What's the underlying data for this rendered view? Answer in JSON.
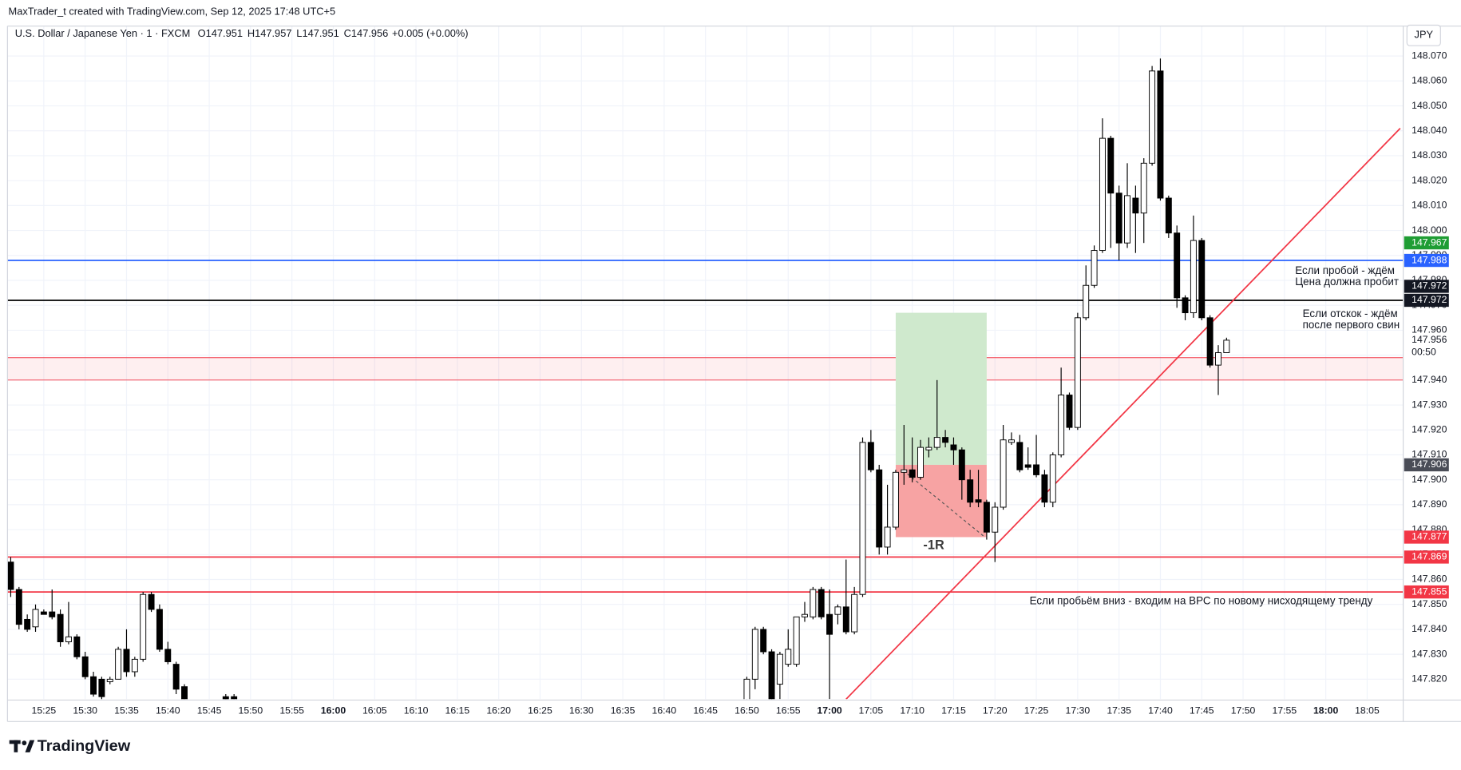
{
  "header": {
    "credit": "MaxTrader_t created with TradingView.com, Sep 12, 2025 17:48 UTC+5",
    "symbol": "U.S. Dollar / Japanese Yen · 1 · FXCM",
    "ohlc": [
      {
        "label": "O",
        "value": 147.951
      },
      {
        "label": "H",
        "value": 147.957
      },
      {
        "label": "L",
        "value": 147.951
      },
      {
        "label": "C",
        "value": 147.956
      }
    ],
    "change": "+0.005 (+0.00%)",
    "currency": "JPY"
  },
  "chart_data": {
    "type": "candlestick",
    "x": [
      "15:21",
      "15:22",
      "15:23",
      "15:24",
      "15:25",
      "15:26",
      "15:27",
      "15:28",
      "15:29",
      "15:30",
      "15:31",
      "15:32",
      "15:33",
      "15:34",
      "15:35",
      "15:36",
      "15:37",
      "15:38",
      "15:39",
      "15:40",
      "15:41",
      "15:42",
      "15:47",
      "15:48",
      "16:50",
      "16:51",
      "16:52",
      "16:53",
      "16:54",
      "16:55",
      "16:56",
      "16:57",
      "16:58",
      "16:59",
      "17:00",
      "17:01",
      "17:02",
      "17:03",
      "17:04",
      "17:05",
      "17:06",
      "17:07",
      "17:08",
      "17:09",
      "17:10",
      "17:11",
      "17:12",
      "17:13",
      "17:14",
      "17:15",
      "17:16",
      "17:17",
      "17:18",
      "17:19",
      "17:20",
      "17:21",
      "17:22",
      "17:23",
      "17:24",
      "17:25",
      "17:26",
      "17:27",
      "17:28",
      "17:29",
      "17:30",
      "17:31",
      "17:32",
      "17:33",
      "17:34",
      "17:35",
      "17:36",
      "17:37",
      "17:38",
      "17:39",
      "17:40",
      "17:41",
      "17:42",
      "17:43",
      "17:44",
      "17:45",
      "17:46",
      "17:47",
      "17:48"
    ],
    "open": [
      147.867,
      147.856,
      147.844,
      147.841,
      147.847,
      147.847,
      147.846,
      147.835,
      147.837,
      147.829,
      147.821,
      147.82,
      147.819,
      147.82,
      147.832,
      147.823,
      147.828,
      147.854,
      147.848,
      147.832,
      147.826,
      147.817,
      147.813,
      147.813,
      147.808,
      147.82,
      147.84,
      147.831,
      147.818,
      147.826,
      147.826,
      147.845,
      147.845,
      147.856,
      147.846,
      147.846,
      147.849,
      147.839,
      147.854,
      147.915,
      147.904,
      147.873,
      147.881,
      147.903,
      147.904,
      147.901,
      147.912,
      147.913,
      147.917,
      147.914,
      147.912,
      147.9,
      147.892,
      147.891,
      147.879,
      147.889,
      147.915,
      147.915,
      147.906,
      147.906,
      147.902,
      147.891,
      147.91,
      147.934,
      147.921,
      147.965,
      147.978,
      147.992,
      148.037,
      148.015,
      147.995,
      148.013,
      148.007,
      148.027,
      148.064,
      148.013,
      147.999,
      147.973,
      147.967,
      147.996,
      147.965,
      147.946,
      147.951
    ],
    "high": [
      147.869,
      147.857,
      147.846,
      147.85,
      147.848,
      147.856,
      147.848,
      147.851,
      147.838,
      147.831,
      147.823,
      147.821,
      147.821,
      147.833,
      147.84,
      147.829,
      147.855,
      147.855,
      147.85,
      147.835,
      147.827,
      147.818,
      147.814,
      147.814,
      147.821,
      147.841,
      147.841,
      147.832,
      147.831,
      147.84,
      147.845,
      147.851,
      147.857,
      147.857,
      147.856,
      147.85,
      147.868,
      147.857,
      147.917,
      147.92,
      147.906,
      147.898,
      147.904,
      147.922,
      147.917,
      147.916,
      147.917,
      147.94,
      147.92,
      147.917,
      147.913,
      147.904,
      147.904,
      147.892,
      147.891,
      147.922,
      147.919,
      147.918,
      147.913,
      147.918,
      147.904,
      147.911,
      147.945,
      147.935,
      147.967,
      147.986,
      147.994,
      148.045,
      148.038,
      148.018,
      148.027,
      148.018,
      148.029,
      148.066,
      148.069,
      148.014,
      148.002,
      147.974,
      148.006,
      147.997,
      147.966,
      147.954,
      147.957
    ],
    "low": [
      147.853,
      147.84,
      147.839,
      147.839,
      147.846,
      147.844,
      147.833,
      147.834,
      147.828,
      147.82,
      147.813,
      147.808,
      147.818,
      147.82,
      147.821,
      147.821,
      147.827,
      147.847,
      147.831,
      147.826,
      147.814,
      147.805,
      147.811,
      147.808,
      147.805,
      147.816,
      147.83,
      147.805,
      147.812,
      147.825,
      147.825,
      147.843,
      147.844,
      147.844,
      147.812,
      147.842,
      147.838,
      147.838,
      147.853,
      147.903,
      147.87,
      147.87,
      147.88,
      147.898,
      147.899,
      147.9,
      147.909,
      147.912,
      147.913,
      147.906,
      147.892,
      147.889,
      147.889,
      147.876,
      147.867,
      147.888,
      147.914,
      147.903,
      147.904,
      147.901,
      147.889,
      147.889,
      147.909,
      147.92,
      147.92,
      147.964,
      147.977,
      147.991,
      147.993,
      147.988,
      147.993,
      147.991,
      147.995,
      148.026,
      148.012,
      147.997,
      147.969,
      147.964,
      147.965,
      147.964,
      147.945,
      147.934,
      147.951
    ],
    "close": [
      147.856,
      147.842,
      147.84,
      147.848,
      147.846,
      147.845,
      147.835,
      147.837,
      147.829,
      147.821,
      147.814,
      147.813,
      147.82,
      147.832,
      147.823,
      147.828,
      147.854,
      147.848,
      147.832,
      147.827,
      147.816,
      147.808,
      147.812,
      147.811,
      147.82,
      147.84,
      147.831,
      147.808,
      147.83,
      147.832,
      147.845,
      147.846,
      147.856,
      147.845,
      147.838,
      147.849,
      147.839,
      147.854,
      147.915,
      147.904,
      147.873,
      147.881,
      147.903,
      147.904,
      147.901,
      147.913,
      147.913,
      147.917,
      147.915,
      147.912,
      147.9,
      147.891,
      147.891,
      147.879,
      147.889,
      147.916,
      147.916,
      147.904,
      147.905,
      147.902,
      147.891,
      147.91,
      147.934,
      147.921,
      147.965,
      147.978,
      147.992,
      148.037,
      148.015,
      147.995,
      148.014,
      148.007,
      148.027,
      148.064,
      148.013,
      147.999,
      147.973,
      147.967,
      147.996,
      147.965,
      147.946,
      147.951,
      147.956
    ],
    "up_color": "#ffffff",
    "down_color": "#000000",
    "wick_color": "#000000",
    "xlim": [
      "15:21",
      "18:09"
    ],
    "xticks": [
      "15:25",
      "15:30",
      "15:35",
      "15:40",
      "15:45",
      "15:50",
      "15:55",
      "16:00",
      "16:05",
      "16:10",
      "16:15",
      "16:20",
      "16:25",
      "16:30",
      "16:35",
      "16:40",
      "16:45",
      "16:50",
      "16:55",
      "17:00",
      "17:05",
      "17:10",
      "17:15",
      "17:20",
      "17:25",
      "17:30",
      "17:35",
      "17:40",
      "17:45",
      "17:50",
      "17:55",
      "18:00",
      "18:05"
    ],
    "ylim": [
      147.812,
      148.082
    ],
    "yticks": [
      {
        "value": 147.82,
        "label": "147.820"
      },
      {
        "value": 147.83,
        "label": "147.830"
      },
      {
        "value": 147.84,
        "label": "147.840"
      },
      {
        "value": 147.85,
        "label": "147.850"
      },
      {
        "value": 147.86,
        "label": "147.860"
      },
      {
        "value": 147.87,
        "label": "147.870"
      },
      {
        "value": 147.88,
        "label": "147.880"
      },
      {
        "value": 147.89,
        "label": "147.890"
      },
      {
        "value": 147.9,
        "label": "147.900"
      },
      {
        "value": 147.91,
        "label": "147.910"
      },
      {
        "value": 147.92,
        "label": "147.920"
      },
      {
        "value": 147.93,
        "label": "147.930"
      },
      {
        "value": 147.94,
        "label": "147.940"
      },
      {
        "value": 147.95,
        "label": "147.950"
      },
      {
        "value": 147.96,
        "label": "147.960"
      },
      {
        "value": 147.97,
        "label": "147.970"
      },
      {
        "value": 147.98,
        "label": "147.980"
      },
      {
        "value": 147.99,
        "label": "147.990"
      },
      {
        "value": 148,
        "label": "148.000"
      },
      {
        "value": 148.01,
        "label": "148.010"
      },
      {
        "value": 148.02,
        "label": "148.020"
      },
      {
        "value": 148.03,
        "label": "148.030"
      },
      {
        "value": 148.04,
        "label": "148.040"
      },
      {
        "value": 148.05,
        "label": "148.050"
      },
      {
        "value": 148.06,
        "label": "148.060"
      },
      {
        "value": 148.07,
        "label": "148.070"
      }
    ],
    "grid": true,
    "zone": [
      147.94,
      147.949
    ],
    "zone_color": "#f23645",
    "levels": [
      {
        "value": 147.988,
        "color": "#2962ff"
      },
      {
        "value": 147.972,
        "color": "#000000"
      },
      {
        "value": 147.869,
        "color": "#f23645"
      },
      {
        "value": 147.855,
        "color": "#f23645"
      }
    ],
    "trendline": {
      "x": [
        "17:02",
        "18:09"
      ],
      "values": [
        147.812,
        148.041
      ],
      "color": "#f23645"
    },
    "position": {
      "x": [
        "17:08",
        "17:19"
      ],
      "target": 147.967,
      "entry": 147.906,
      "stop": 147.877,
      "label": "-1R",
      "profit_color": "#cfe9cd",
      "loss_color": "#f7a3a3"
    },
    "price_tags": [
      {
        "value": 147.988,
        "color": "#2962ff"
      },
      {
        "value": 147.972,
        "color": "#131722"
      },
      {
        "value": 147.972,
        "color": "#131722"
      },
      {
        "value": 147.967,
        "color": "#1f9d34"
      },
      {
        "value": 147.906,
        "color": "#4a4d57"
      },
      {
        "value": 147.877,
        "color": "#f23645"
      },
      {
        "value": 147.869,
        "color": "#f23645"
      },
      {
        "value": 147.855,
        "color": "#f23645"
      }
    ],
    "current_price": {
      "value": 147.956,
      "countdown": "00:50"
    },
    "annotations": [
      "Если пробой - ждём",
      "Цена должна пробит",
      "Если отскок - ждём",
      "после первого свин",
      "Если пробьём вниз - входим на ВРС по новому нисходящему тренду"
    ]
  },
  "footer": {
    "logo": "TradingView"
  }
}
